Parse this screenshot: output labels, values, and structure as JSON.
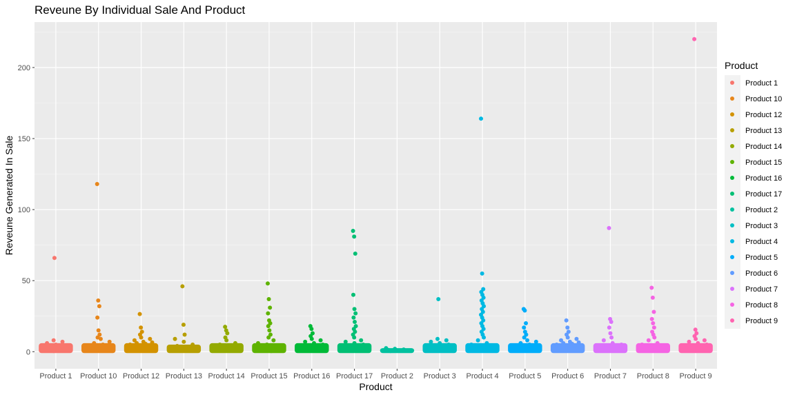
{
  "chart_data": {
    "type": "scatter",
    "title": "Reveune By Individual Sale And Product",
    "xlabel": "Product",
    "ylabel": "Reveune Generated In Sale",
    "ylim": [
      -12,
      232
    ],
    "yticks": [
      0,
      50,
      100,
      150,
      200
    ],
    "grid": true,
    "legend": {
      "title": "Product",
      "position": "right"
    },
    "categories": [
      "Product 1",
      "Product 10",
      "Product 12",
      "Product 13",
      "Product 14",
      "Product 15",
      "Product 16",
      "Product 17",
      "Product 2",
      "Product 3",
      "Product 4",
      "Product 5",
      "Product 6",
      "Product 7",
      "Product 8",
      "Product 9"
    ],
    "series": [
      {
        "name": "Product 1",
        "color": "#F8766D",
        "points": [
          66,
          8,
          7,
          6,
          5,
          4,
          3.5,
          3,
          2.5,
          2,
          1.5,
          1,
          0.5
        ]
      },
      {
        "name": "Product 10",
        "color": "#E7861B",
        "points": [
          118,
          36,
          32,
          24,
          15,
          12,
          10,
          9,
          7,
          6,
          5,
          4,
          3,
          2.5,
          2,
          1.5,
          1
        ]
      },
      {
        "name": "Product 12",
        "color": "#D39200",
        "points": [
          26.5,
          17,
          14,
          12,
          10,
          9,
          8,
          7,
          6.5,
          6,
          5.5,
          5,
          4.5,
          4,
          3,
          2
        ]
      },
      {
        "name": "Product 13",
        "color": "#B79F00",
        "points": [
          46,
          19,
          12,
          9,
          7,
          5,
          4,
          3,
          2.5,
          2,
          1.5,
          1
        ]
      },
      {
        "name": "Product 14",
        "color": "#93AA00",
        "points": [
          17.5,
          15,
          13,
          10,
          8,
          6,
          5,
          4,
          3.5,
          3,
          2.5,
          2
        ]
      },
      {
        "name": "Product 15",
        "color": "#5EB300",
        "points": [
          48,
          37,
          31,
          27,
          22,
          20,
          18,
          15,
          12,
          10,
          8,
          6,
          5,
          4,
          3,
          2,
          1.5,
          1,
          0.5
        ]
      },
      {
        "name": "Product 16",
        "color": "#00BA38",
        "points": [
          18,
          16,
          13,
          11,
          9,
          8,
          7,
          6,
          5,
          4,
          3,
          2.5,
          2,
          1.5,
          1
        ]
      },
      {
        "name": "Product 17",
        "color": "#00BF74",
        "points": [
          85,
          81,
          69,
          40,
          30,
          27,
          24,
          21,
          18,
          16,
          14,
          12,
          10,
          8,
          7,
          6,
          5,
          4,
          3,
          2.5,
          2
        ]
      },
      {
        "name": "Product 2",
        "color": "#00C19F",
        "points": [
          2.5,
          2,
          1.5,
          1.2,
          1,
          0.8,
          0.5
        ]
      },
      {
        "name": "Product 3",
        "color": "#00BFC4",
        "points": [
          37,
          9,
          8,
          7,
          6,
          5,
          4,
          3,
          2.5,
          2,
          1.5,
          1
        ]
      },
      {
        "name": "Product 4",
        "color": "#00B9E3",
        "points": [
          164,
          55,
          44,
          42,
          40,
          38,
          36,
          34,
          32,
          30,
          28,
          26,
          24,
          22,
          20,
          18,
          16,
          14,
          12,
          10,
          8,
          6,
          5,
          4,
          3,
          2,
          1.5,
          1
        ]
      },
      {
        "name": "Product 5",
        "color": "#00ADFA",
        "points": [
          30,
          29,
          20,
          17,
          14,
          12,
          10,
          8,
          7,
          6,
          5,
          4,
          3,
          2.5,
          2
        ]
      },
      {
        "name": "Product 6",
        "color": "#619CFF",
        "points": [
          22,
          17,
          14,
          12,
          10,
          9,
          8,
          7,
          6.5,
          6,
          5.5,
          5,
          4.5,
          4,
          3
        ]
      },
      {
        "name": "Product 7",
        "color": "#DB72FB",
        "points": [
          87,
          23,
          21,
          17,
          13,
          10,
          8,
          6,
          5,
          4,
          3,
          2,
          1.5,
          1
        ]
      },
      {
        "name": "Product 8",
        "color": "#F564E3",
        "points": [
          45,
          38,
          28,
          23,
          20,
          17,
          14,
          12,
          10,
          8,
          6,
          5,
          4,
          3,
          2,
          1
        ]
      },
      {
        "name": "Product 9",
        "color": "#FF64B0",
        "points": [
          220,
          15.5,
          13,
          11,
          9,
          8,
          7,
          6,
          5,
          4,
          3,
          2.5,
          2,
          1.5,
          1
        ]
      }
    ]
  }
}
